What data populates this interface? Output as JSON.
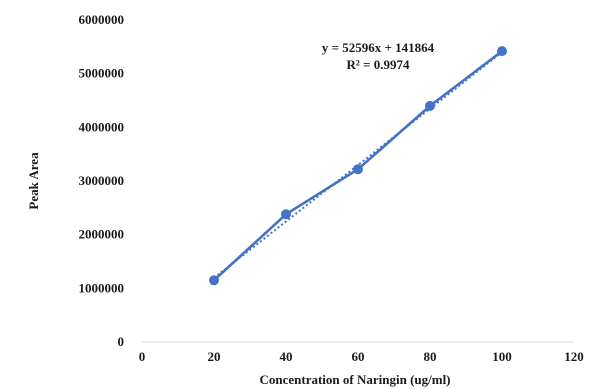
{
  "chart_data": {
    "type": "scatter",
    "title": "",
    "xlabel": "Concentration of Naringin (ug/ml)",
    "ylabel": "Peak Area",
    "xlim": [
      0,
      120
    ],
    "ylim": [
      0,
      6000000
    ],
    "x_ticks": [
      "0",
      "20",
      "40",
      "60",
      "80",
      "100",
      "120"
    ],
    "y_ticks": [
      "0",
      "1000000",
      "2000000",
      "3000000",
      "4000000",
      "5000000",
      "6000000"
    ],
    "series": [
      {
        "x": [
          20,
          40,
          60,
          80,
          100
        ],
        "y": [
          1150000,
          2380000,
          3220000,
          4400000,
          5420000
        ],
        "color": "#4472c4",
        "line": "solid",
        "markers": true
      }
    ],
    "trendline": {
      "kind": "linear",
      "slope": 52596,
      "intercept": 141864,
      "style": "dotted",
      "color": "#4472c4"
    },
    "annotations": [
      "y = 52596x + 141864",
      "R² = 0.9974"
    ],
    "grid": false,
    "legend": "none"
  }
}
